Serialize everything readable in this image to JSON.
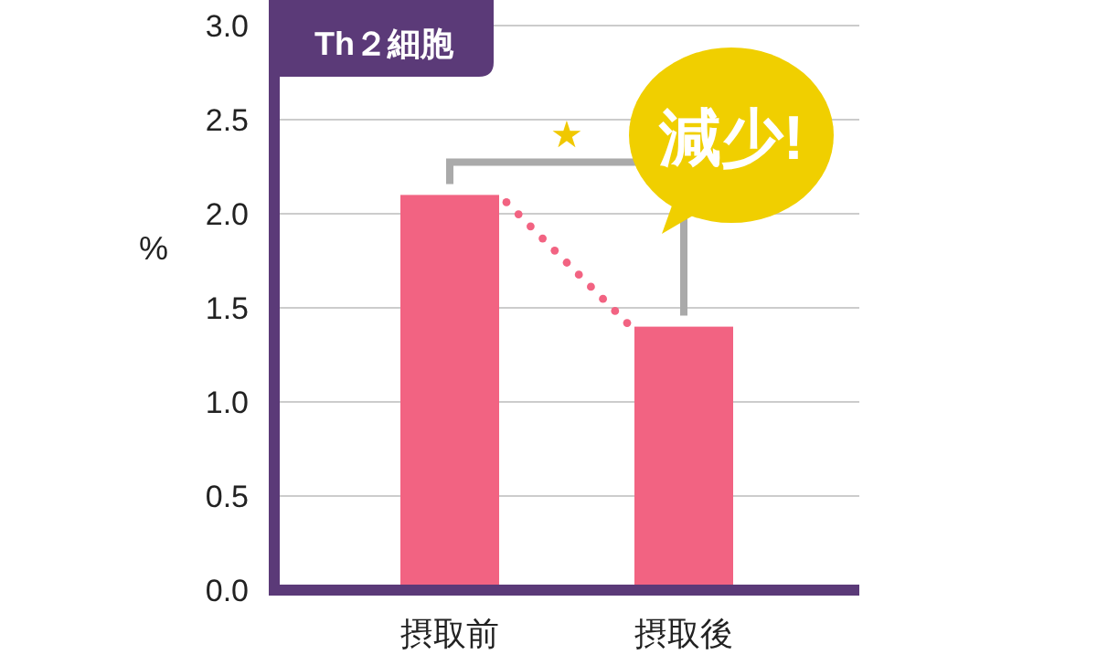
{
  "chart_data": {
    "type": "bar",
    "title": "Th２細胞",
    "ylabel": "%",
    "categories": [
      "摂取前",
      "摂取後"
    ],
    "series": [
      {
        "color": "#f26382",
        "values": [
          2.1,
          1.4
        ]
      }
    ],
    "ylim": [
      0,
      3
    ],
    "yticks": [
      {
        "value": 0,
        "label": "0.0"
      },
      {
        "value": 0.5,
        "label": "0.5"
      },
      {
        "value": 1,
        "label": "1.0"
      },
      {
        "value": 1.5,
        "label": "1.5"
      },
      {
        "value": 2,
        "label": "2.0"
      },
      {
        "value": 2.5,
        "label": "2.5"
      },
      {
        "value": 3,
        "label": "3.0"
      }
    ],
    "grid": "y",
    "annotations": [
      "★",
      "減少!"
    ]
  }
}
